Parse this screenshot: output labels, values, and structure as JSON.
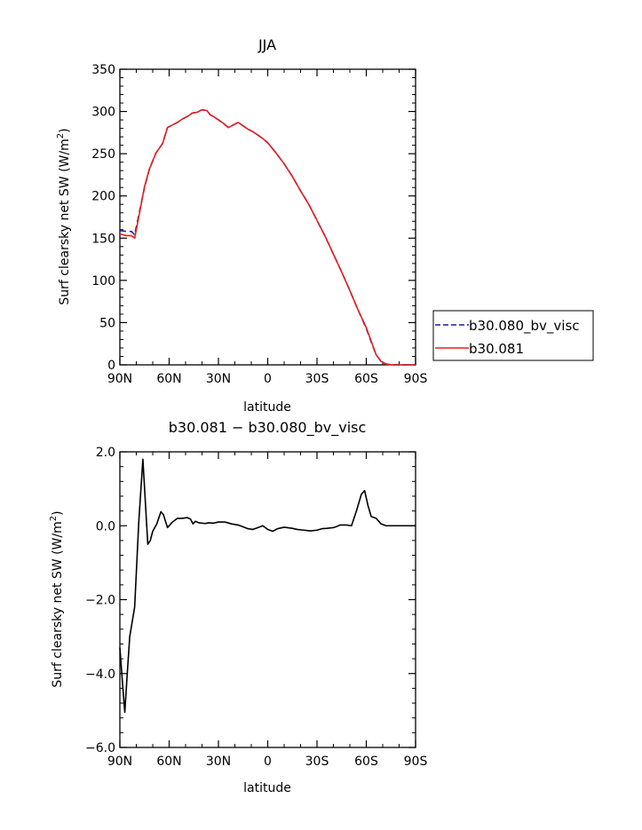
{
  "chart_data": [
    {
      "type": "line",
      "title": "JJA",
      "xlabel": "latitude",
      "ylabel": "Surf clearsky net SW (W/m²)",
      "ylabel_main": "Surf clearsky net SW (W/m",
      "ylabel_sup": "2",
      "ylabel_end": ")",
      "xlim": [
        90,
        -90
      ],
      "ylim": [
        0,
        350
      ],
      "x_ticks": [
        {
          "v": 90,
          "label": "90N"
        },
        {
          "v": 60,
          "label": "60N"
        },
        {
          "v": 30,
          "label": "30N"
        },
        {
          "v": 0,
          "label": "0"
        },
        {
          "v": -30,
          "label": "30S"
        },
        {
          "v": -60,
          "label": "60S"
        },
        {
          "v": -90,
          "label": "90S"
        }
      ],
      "y_ticks": [
        {
          "v": 0,
          "label": "0"
        },
        {
          "v": 50,
          "label": "50"
        },
        {
          "v": 100,
          "label": "100"
        },
        {
          "v": 150,
          "label": "150"
        },
        {
          "v": 200,
          "label": "200"
        },
        {
          "v": 250,
          "label": "250"
        },
        {
          "v": 300,
          "label": "300"
        },
        {
          "v": 350,
          "label": "350"
        }
      ],
      "grid": false,
      "legend_position": "right, outside plot, near bottom",
      "series": [
        {
          "name": "b30.080_bv_visc",
          "color": "#1a1aa8",
          "style": "dashed",
          "points": [
            [
              90,
              159
            ],
            [
              86,
              158
            ],
            [
              83,
              158
            ],
            [
              81,
              154
            ],
            [
              78,
              182
            ],
            [
              75,
              210
            ],
            [
              72,
              232
            ],
            [
              68,
              251
            ],
            [
              64,
              262
            ],
            [
              61,
              281
            ],
            [
              58,
              284
            ],
            [
              55,
              287
            ],
            [
              52,
              291
            ],
            [
              49,
              294
            ],
            [
              46,
              298
            ],
            [
              43,
              299
            ],
            [
              40,
              302
            ],
            [
              37,
              301
            ],
            [
              35,
              296
            ],
            [
              33,
              294
            ],
            [
              30,
              290
            ],
            [
              27,
              286
            ],
            [
              24,
              281
            ],
            [
              21,
              284
            ],
            [
              18,
              287
            ],
            [
              15,
              283
            ],
            [
              12,
              279
            ],
            [
              9,
              276
            ],
            [
              6,
              272
            ],
            [
              3,
              268
            ],
            [
              0,
              263
            ],
            [
              -5,
              251
            ],
            [
              -10,
              238
            ],
            [
              -15,
              223
            ],
            [
              -20,
              206
            ],
            [
              -25,
              190
            ],
            [
              -30,
              171
            ],
            [
              -35,
              152
            ],
            [
              -40,
              131
            ],
            [
              -45,
              110
            ],
            [
              -50,
              88
            ],
            [
              -55,
              65
            ],
            [
              -60,
              43
            ],
            [
              -63,
              27
            ],
            [
              -66,
              12
            ],
            [
              -69,
              4
            ],
            [
              -72,
              1
            ],
            [
              -76,
              0
            ],
            [
              -80,
              0
            ],
            [
              -90,
              0
            ]
          ]
        },
        {
          "name": "b30.081",
          "color": "#e02020",
          "style": "solid",
          "points": [
            [
              90,
              155
            ],
            [
              86,
              153
            ],
            [
              83,
              153
            ],
            [
              81,
              150
            ],
            [
              78,
              180
            ],
            [
              75,
              211
            ],
            [
              72,
              232
            ],
            [
              68,
              251
            ],
            [
              64,
              262
            ],
            [
              61,
              281
            ],
            [
              58,
              284
            ],
            [
              55,
              287
            ],
            [
              52,
              291
            ],
            [
              49,
              294
            ],
            [
              46,
              298
            ],
            [
              43,
              299
            ],
            [
              40,
              302
            ],
            [
              37,
              301
            ],
            [
              35,
              296
            ],
            [
              33,
              294
            ],
            [
              30,
              290
            ],
            [
              27,
              286
            ],
            [
              24,
              281
            ],
            [
              21,
              284
            ],
            [
              18,
              287
            ],
            [
              15,
              283
            ],
            [
              12,
              279
            ],
            [
              9,
              276
            ],
            [
              6,
              272
            ],
            [
              3,
              268
            ],
            [
              0,
              263
            ],
            [
              -5,
              251
            ],
            [
              -10,
              238
            ],
            [
              -15,
              223
            ],
            [
              -20,
              206
            ],
            [
              -25,
              190
            ],
            [
              -30,
              171
            ],
            [
              -35,
              152
            ],
            [
              -40,
              131
            ],
            [
              -45,
              110
            ],
            [
              -50,
              88
            ],
            [
              -55,
              65
            ],
            [
              -60,
              44
            ],
            [
              -63,
              28
            ],
            [
              -66,
              12
            ],
            [
              -69,
              4
            ],
            [
              -72,
              1
            ],
            [
              -76,
              0
            ],
            [
              -80,
              0
            ],
            [
              -90,
              0
            ]
          ]
        }
      ]
    },
    {
      "type": "line",
      "title": "b30.081 − b30.080_bv_visc",
      "xlabel": "latitude",
      "ylabel": "Surf clearsky net SW (W/m²)",
      "ylabel_main": "Surf clearsky net SW (W/m",
      "ylabel_sup": "2",
      "ylabel_end": ")",
      "xlim": [
        90,
        -90
      ],
      "ylim": [
        -6,
        2
      ],
      "x_ticks": [
        {
          "v": 90,
          "label": "90N"
        },
        {
          "v": 60,
          "label": "60N"
        },
        {
          "v": 30,
          "label": "30N"
        },
        {
          "v": 0,
          "label": "0"
        },
        {
          "v": -30,
          "label": "30S"
        },
        {
          "v": -60,
          "label": "60S"
        },
        {
          "v": -90,
          "label": "90S"
        }
      ],
      "y_ticks": [
        {
          "v": 2,
          "label": "2.0"
        },
        {
          "v": 0,
          "label": "0.0"
        },
        {
          "v": -2,
          "label": "−2.0"
        },
        {
          "v": -4,
          "label": "−4.0"
        },
        {
          "v": -6,
          "label": "−6.0"
        }
      ],
      "grid": false,
      "series": [
        {
          "color": "#000000",
          "style": "solid",
          "points": [
            [
              90,
              -3.3
            ],
            [
              88.5,
              -4.2
            ],
            [
              87,
              -5.05
            ],
            [
              85.5,
              -4.0
            ],
            [
              84,
              -3.0
            ],
            [
              81,
              -2.2
            ],
            [
              78.5,
              0.1
            ],
            [
              76,
              1.8
            ],
            [
              73,
              -0.5
            ],
            [
              71.5,
              -0.4
            ],
            [
              70,
              -0.15
            ],
            [
              67.5,
              0.05
            ],
            [
              65,
              0.38
            ],
            [
              63.5,
              0.3
            ],
            [
              61,
              -0.05
            ],
            [
              58,
              0.1
            ],
            [
              55,
              0.2
            ],
            [
              52,
              0.2
            ],
            [
              49,
              0.22
            ],
            [
              47,
              0.18
            ],
            [
              45.5,
              0.05
            ],
            [
              44,
              0.12
            ],
            [
              42,
              0.08
            ],
            [
              38,
              0.06
            ],
            [
              36,
              0.08
            ],
            [
              33,
              0.07
            ],
            [
              30,
              0.1
            ],
            [
              26,
              0.1
            ],
            [
              22,
              0.05
            ],
            [
              18,
              0.02
            ],
            [
              15,
              -0.03
            ],
            [
              12,
              -0.08
            ],
            [
              9,
              -0.1
            ],
            [
              6,
              -0.05
            ],
            [
              3,
              0.0
            ],
            [
              0,
              -0.1
            ],
            [
              -3,
              -0.15
            ],
            [
              -6,
              -0.08
            ],
            [
              -10,
              -0.04
            ],
            [
              -15,
              -0.07
            ],
            [
              -18,
              -0.1
            ],
            [
              -22,
              -0.12
            ],
            [
              -26,
              -0.14
            ],
            [
              -30,
              -0.12
            ],
            [
              -33,
              -0.08
            ],
            [
              -36,
              -0.07
            ],
            [
              -40,
              -0.05
            ],
            [
              -42,
              -0.02
            ],
            [
              -44,
              0.02
            ],
            [
              -48,
              0.02
            ],
            [
              -51,
              0.0
            ],
            [
              -54,
              0.4
            ],
            [
              -57,
              0.85
            ],
            [
              -59,
              0.95
            ],
            [
              -61,
              0.55
            ],
            [
              -63,
              0.25
            ],
            [
              -66,
              0.2
            ],
            [
              -69,
              0.05
            ],
            [
              -72,
              0.0
            ],
            [
              -76,
              0.0
            ],
            [
              -90,
              0.0
            ]
          ]
        }
      ]
    }
  ]
}
